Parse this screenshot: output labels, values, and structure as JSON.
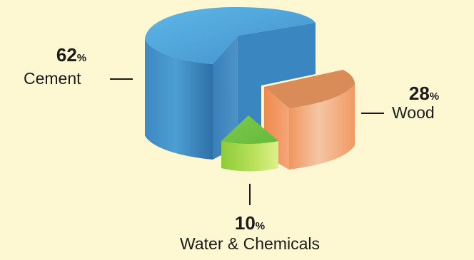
{
  "chart_data": {
    "type": "pie",
    "style": "3d-exploded",
    "categories": [
      "Cement",
      "Wood",
      "Water & Chemicals"
    ],
    "values": [
      62,
      28,
      10
    ],
    "unit": "%",
    "colors": {
      "Cement": "#4a9bcf",
      "Wood": "#f2a070",
      "Water & Chemicals": "#9fd348"
    },
    "labels": [
      {
        "value": "62",
        "unit": "%",
        "name": "Cement"
      },
      {
        "value": "28",
        "unit": "%",
        "name": "Wood"
      },
      {
        "value": "10",
        "unit": "%",
        "name": "Water & Chemicals"
      }
    ]
  }
}
